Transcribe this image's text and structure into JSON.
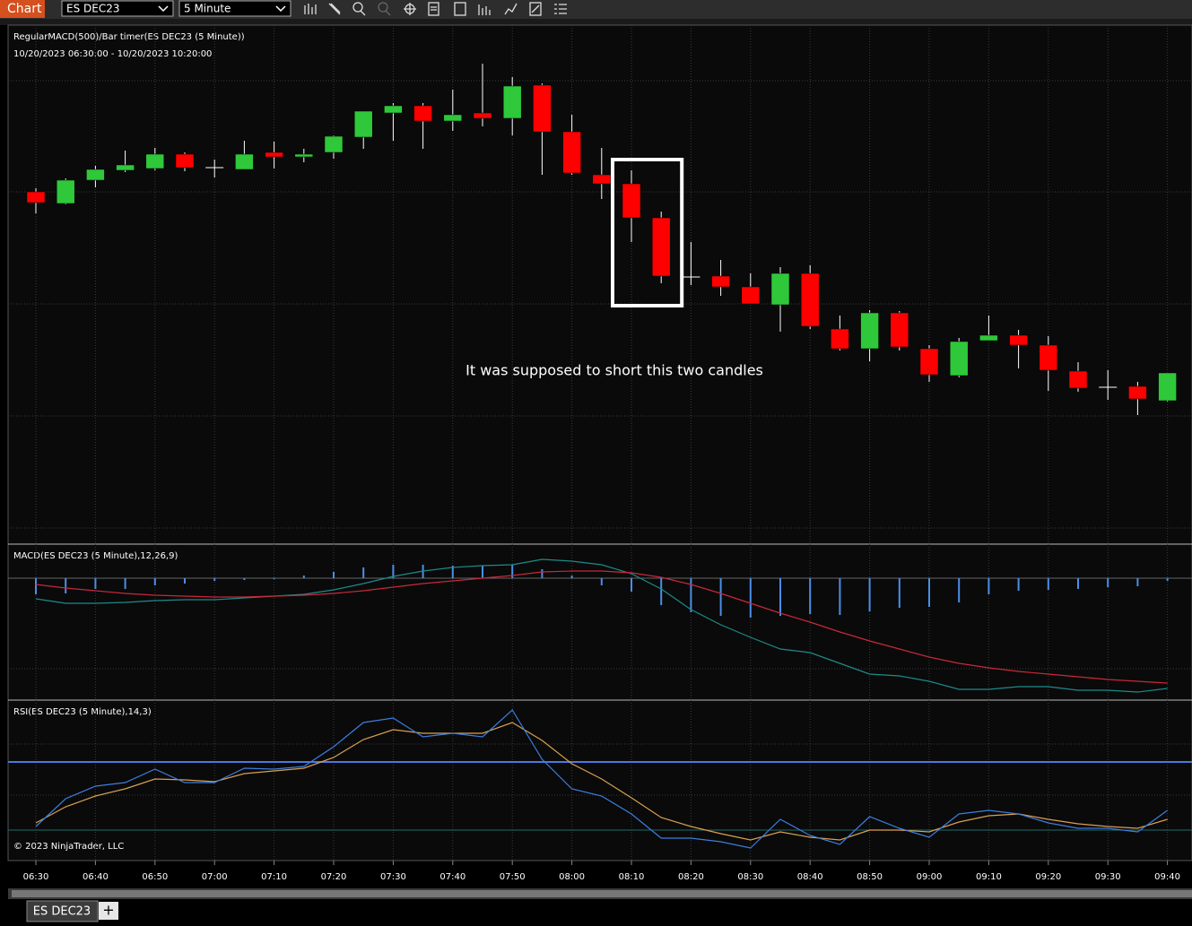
{
  "toolbar": {
    "button": "Chart",
    "instrument": "ES DEC23",
    "interval": "5 Minute"
  },
  "price_panel": {
    "title": "RegularMACD(500)/Bar timer(ES DEC23 (5 Minute))",
    "range": "10/20/2023 06:30:00 - 10/20/2023 10:20:00",
    "annotation": "It was supposed to short this two candles",
    "up_color": "#2fc83a",
    "down_color": "#ff0000",
    "doji_color": "#ffffff",
    "highlight": [
      20,
      21
    ],
    "candles": [
      {
        "o": 286,
        "h": 290,
        "l": 262,
        "c": 274
      },
      {
        "o": 273,
        "h": 301,
        "l": 272,
        "c": 299
      },
      {
        "o": 299,
        "h": 315,
        "l": 291,
        "c": 311
      },
      {
        "o": 310,
        "h": 332,
        "l": 308,
        "c": 316
      },
      {
        "o": 312,
        "h": 335,
        "l": 310,
        "c": 328
      },
      {
        "o": 328,
        "h": 330,
        "l": 309,
        "c": 313
      },
      {
        "o": 313,
        "h": 322,
        "l": 302,
        "c": 313
      },
      {
        "o": 311,
        "h": 343,
        "l": 311,
        "c": 328
      },
      {
        "o": 330,
        "h": 342,
        "l": 312,
        "c": 325
      },
      {
        "o": 325,
        "h": 334,
        "l": 319,
        "c": 328
      },
      {
        "o": 330,
        "h": 349,
        "l": 323,
        "c": 348
      },
      {
        "o": 347,
        "h": 376,
        "l": 334,
        "c": 376
      },
      {
        "o": 374,
        "h": 385,
        "l": 343,
        "c": 382
      },
      {
        "o": 382,
        "h": 385,
        "l": 334,
        "c": 365
      },
      {
        "o": 365,
        "h": 400,
        "l": 354,
        "c": 372
      },
      {
        "o": 374,
        "h": 429,
        "l": 359,
        "c": 368
      },
      {
        "o": 368,
        "h": 414,
        "l": 349,
        "c": 404
      },
      {
        "o": 405,
        "h": 407,
        "l": 305,
        "c": 353
      },
      {
        "o": 353,
        "h": 372,
        "l": 305,
        "c": 307
      },
      {
        "o": 305,
        "h": 335,
        "l": 278,
        "c": 295
      },
      {
        "o": 295,
        "h": 310,
        "l": 230,
        "c": 257
      },
      {
        "o": 257,
        "h": 264,
        "l": 184,
        "c": 192
      },
      {
        "o": 191,
        "h": 230,
        "l": 182,
        "c": 191
      },
      {
        "o": 192,
        "h": 210,
        "l": 170,
        "c": 180
      },
      {
        "o": 180,
        "h": 195,
        "l": 161,
        "c": 161
      },
      {
        "o": 160,
        "h": 202,
        "l": 130,
        "c": 195
      },
      {
        "o": 195,
        "h": 204,
        "l": 133,
        "c": 136
      },
      {
        "o": 133,
        "h": 148,
        "l": 109,
        "c": 111
      },
      {
        "o": 111,
        "h": 154,
        "l": 97,
        "c": 151
      },
      {
        "o": 151,
        "h": 153,
        "l": 109,
        "c": 113
      },
      {
        "o": 111,
        "h": 115,
        "l": 74,
        "c": 82
      },
      {
        "o": 81,
        "h": 123,
        "l": 79,
        "c": 119
      },
      {
        "o": 120,
        "h": 148,
        "l": 120,
        "c": 126
      },
      {
        "o": 126,
        "h": 132,
        "l": 89,
        "c": 115
      },
      {
        "o": 115,
        "h": 125,
        "l": 64,
        "c": 87
      },
      {
        "o": 86,
        "h": 96,
        "l": 63,
        "c": 67
      },
      {
        "o": 68,
        "h": 87,
        "l": 54,
        "c": 68
      },
      {
        "o": 69,
        "h": 74,
        "l": 37,
        "c": 55
      },
      {
        "o": 53,
        "h": 84,
        "l": 52,
        "c": 84
      }
    ]
  },
  "macd_panel": {
    "title": "MACD(ES DEC23 (5 Minute),12,26,9)",
    "histogram_color": "#4a8fe8",
    "macd_color": "#1f8a8a",
    "signal_color": "#c8283c",
    "histogram": [
      -18,
      -17,
      -12,
      -12,
      -8,
      -6,
      -3,
      -2,
      -1,
      3,
      7,
      12,
      15,
      15,
      14,
      14,
      15,
      10,
      3,
      -8,
      -15,
      -30,
      -38,
      -42,
      -44,
      -42,
      -40,
      -41,
      -37,
      -33,
      -32,
      -27,
      -18,
      -14,
      -13,
      -12,
      -10,
      -9,
      -3
    ],
    "macd": [
      -23,
      -28,
      -28,
      -27,
      -25,
      -24,
      -24,
      -22,
      -20,
      -18,
      -13,
      -6,
      2,
      8,
      12,
      14,
      15,
      21,
      19,
      15,
      5,
      -12,
      -35,
      -52,
      -66,
      -79,
      -83,
      -95,
      -107,
      -109,
      -115,
      -124,
      -124,
      -121,
      -121,
      -125,
      -125,
      -127,
      -123
    ],
    "signal": [
      -7,
      -11,
      -14,
      -17,
      -19,
      -20,
      -21,
      -21,
      -20,
      -19,
      -17,
      -14,
      -10,
      -6,
      -3,
      0,
      3,
      7,
      8,
      8,
      6,
      1,
      -7,
      -17,
      -28,
      -39,
      -49,
      -60,
      -70,
      -79,
      -88,
      -95,
      -100,
      -104,
      -107,
      -110,
      -113,
      -115,
      -117
    ]
  },
  "rsi_panel": {
    "title": "RSI(ES DEC23 (5 Minute),14,3)",
    "rsi_color": "#3c7ee0",
    "avg_color": "#d9a050",
    "upper_level": 110,
    "upper_color": "#4a78e0",
    "lower_level": 34,
    "lower_color": "#1f6a6a",
    "rsi": [
      38,
      69,
      83,
      87,
      102,
      87,
      87,
      103,
      102,
      105,
      127,
      154,
      159,
      138,
      142,
      138,
      168,
      113,
      80,
      72,
      52,
      25,
      25,
      21,
      14,
      46,
      28,
      18,
      49,
      36,
      26,
      52,
      56,
      52,
      42,
      36,
      36,
      32,
      56
    ],
    "avg": [
      42,
      60,
      72,
      80,
      91,
      90,
      88,
      97,
      100,
      103,
      115,
      135,
      146,
      142,
      142,
      142,
      154,
      134,
      108,
      91,
      70,
      48,
      38,
      30,
      23,
      32,
      26,
      23,
      34,
      34,
      32,
      43,
      50,
      52,
      46,
      41,
      38,
      36,
      46
    ]
  },
  "copyright": "© 2023 NinjaTrader, LLC",
  "x_labels": [
    "06:30",
    "06:40",
    "06:50",
    "07:00",
    "07:10",
    "07:20",
    "07:30",
    "07:40",
    "07:50",
    "08:00",
    "08:10",
    "08:20",
    "08:30",
    "08:40",
    "08:50",
    "09:00",
    "09:10",
    "09:20",
    "09:30",
    "09:40"
  ],
  "tab": {
    "label": "ES DEC23",
    "add": "+"
  }
}
